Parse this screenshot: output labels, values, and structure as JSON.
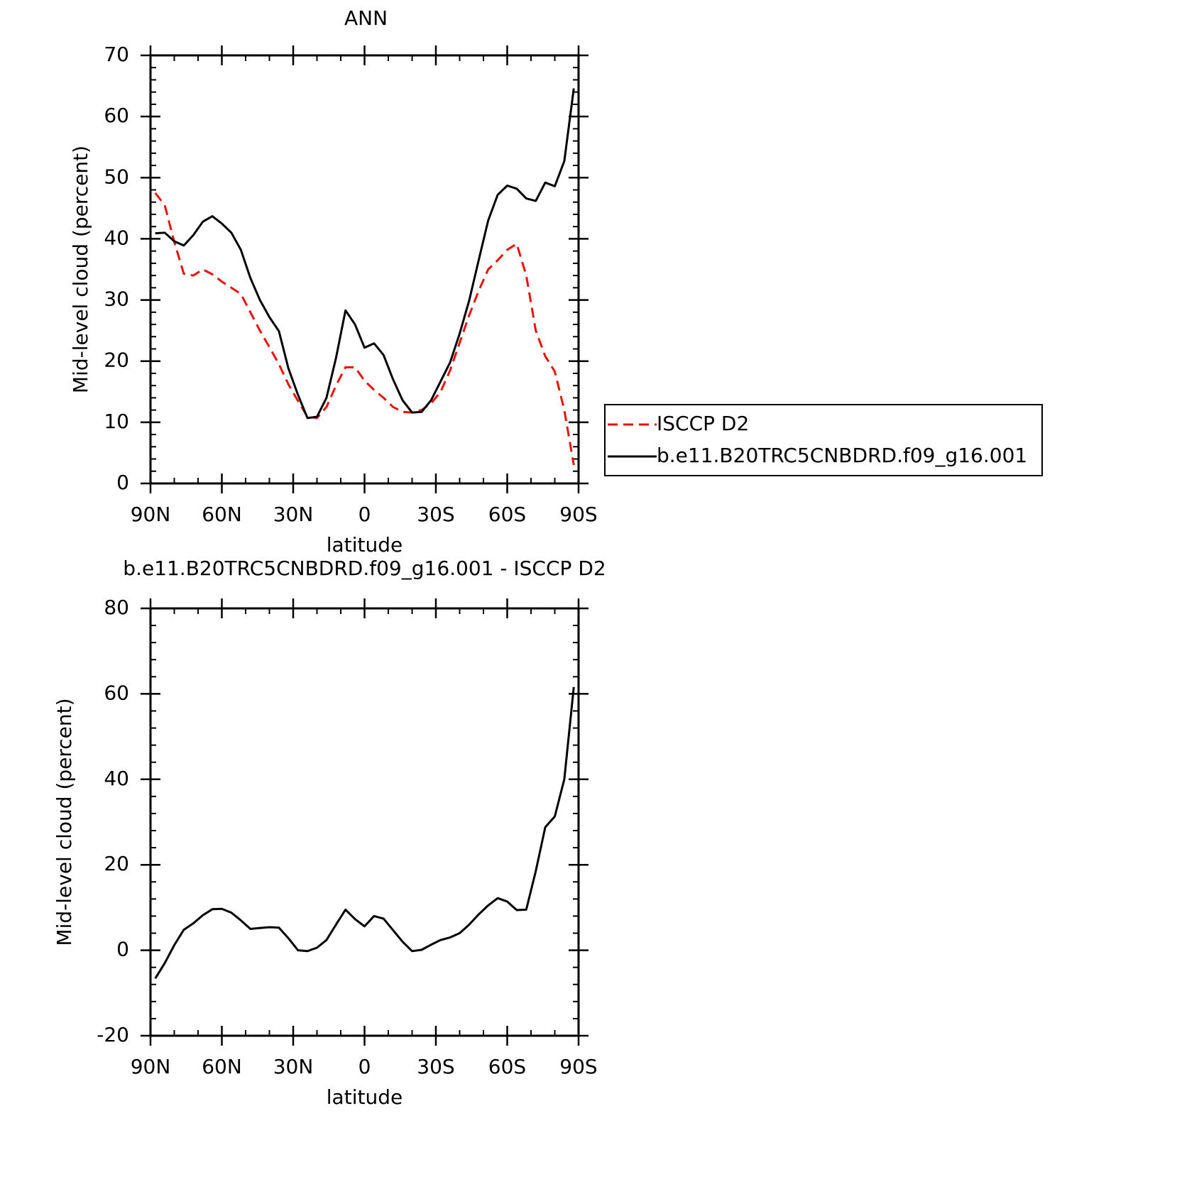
{
  "chart_data": [
    {
      "type": "line",
      "title": "ANN",
      "xlabel": "latitude",
      "ylabel": "Mid-level cloud (percent)",
      "x": [
        88,
        84,
        80,
        76,
        72,
        68,
        64,
        60,
        56,
        52,
        48,
        44,
        40,
        36,
        32,
        28,
        24,
        20,
        16,
        12,
        8,
        4,
        0,
        -4,
        -8,
        -12,
        -16,
        -20,
        -24,
        -28,
        -32,
        -36,
        -40,
        -44,
        -48,
        -52,
        -56,
        -60,
        -64,
        -68,
        -72,
        -76,
        -80,
        -84,
        -88
      ],
      "series": [
        {
          "name": "ISCCP D2",
          "color": "#e8120c",
          "linestyle": "dashed",
          "values": [
            47.5,
            45.5,
            39.5,
            34.3,
            34.0,
            35.0,
            34.2,
            33.0,
            32.0,
            31.0,
            28.0,
            25.0,
            22.3,
            19.5,
            16.2,
            13.5,
            10.9,
            10.7,
            12.5,
            16.0,
            19.0,
            19.0,
            16.8,
            15.3,
            14.0,
            12.5,
            11.7,
            11.6,
            12.0,
            13.1,
            15.0,
            18.5,
            23.0,
            27.5,
            31.5,
            35.0,
            36.5,
            38.2,
            39.2,
            34.0,
            25.0,
            20.8,
            18.3,
            12.0,
            3.0
          ]
        },
        {
          "name": "b.e11.B20TRC5CNBDRD.f09_g16.001",
          "color": "#000000",
          "linestyle": "solid",
          "values": [
            40.9,
            41.0,
            39.6,
            38.9,
            40.6,
            42.8,
            43.7,
            42.5,
            41.0,
            38.2,
            33.6,
            30.0,
            27.2,
            24.9,
            18.8,
            14.5,
            10.7,
            10.9,
            14.0,
            20.5,
            28.3,
            26.0,
            22.2,
            22.9,
            21.0,
            17.0,
            13.6,
            11.6,
            11.7,
            13.6,
            16.7,
            19.8,
            24.5,
            29.9,
            36.5,
            43.0,
            47.2,
            48.7,
            48.2,
            46.6,
            46.2,
            49.2,
            48.6,
            52.7,
            64.6
          ]
        }
      ],
      "xlim": [
        90,
        -90
      ],
      "xticks": [
        {
          "value": 90,
          "label": "90N"
        },
        {
          "value": 60,
          "label": "60N"
        },
        {
          "value": 30,
          "label": "30N"
        },
        0,
        {
          "value": -30,
          "label": "30S"
        },
        {
          "value": -60,
          "label": "60S"
        },
        {
          "value": -90,
          "label": "90S"
        }
      ],
      "ylim": [
        0,
        70
      ],
      "yticks": [
        0,
        10,
        20,
        30,
        40,
        50,
        60,
        70
      ],
      "legend": "right"
    },
    {
      "type": "line",
      "title": "b.e11.B20TRC5CNBDRD.f09_g16.001 - ISCCP D2",
      "xlabel": "latitude",
      "ylabel": "Mid-level cloud (percent)",
      "x": [
        88,
        84,
        80,
        76,
        72,
        68,
        64,
        60,
        56,
        52,
        48,
        44,
        40,
        36,
        32,
        28,
        24,
        20,
        16,
        12,
        8,
        4,
        0,
        -4,
        -8,
        -12,
        -16,
        -20,
        -24,
        -28,
        -32,
        -36,
        -40,
        -44,
        -48,
        -52,
        -56,
        -60,
        -64,
        -68,
        -72,
        -76,
        -80,
        -84,
        -88
      ],
      "series": [
        {
          "color": "#000000",
          "linestyle": "solid",
          "values": [
            -6.6,
            -3.0,
            1.2,
            4.8,
            6.3,
            8.2,
            9.6,
            9.7,
            8.8,
            7.0,
            5.0,
            5.2,
            5.4,
            5.3,
            2.8,
            0.0,
            -0.2,
            0.6,
            2.4,
            6.0,
            9.5,
            7.3,
            5.6,
            8.0,
            7.4,
            4.7,
            2.0,
            -0.2,
            0.1,
            1.3,
            2.4,
            3.0,
            4.0,
            6.0,
            8.4,
            10.5,
            12.2,
            11.4,
            9.4,
            9.5,
            18.5,
            28.8,
            31.3,
            40.0,
            61.6
          ]
        }
      ],
      "xlim": [
        90,
        -90
      ],
      "xticks": [
        {
          "value": 90,
          "label": "90N"
        },
        {
          "value": 60,
          "label": "60N"
        },
        {
          "value": 30,
          "label": "30N"
        },
        0,
        {
          "value": -30,
          "label": "30S"
        },
        {
          "value": -60,
          "label": "60S"
        },
        {
          "value": -90,
          "label": "90S"
        }
      ],
      "ylim": [
        -20,
        80
      ],
      "yticks": [
        -20,
        0,
        20,
        40,
        60,
        80
      ]
    }
  ]
}
